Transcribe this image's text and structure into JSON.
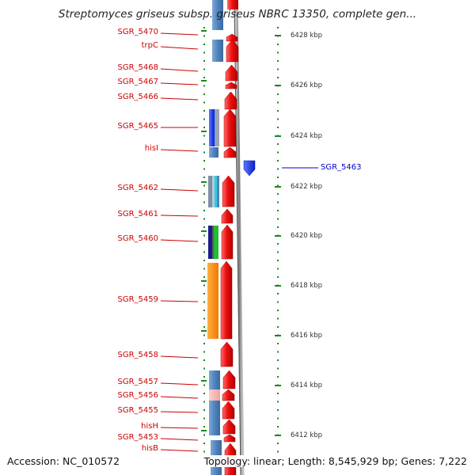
{
  "title": "Streptomyces griseus subsp. griseus NBRC 13350, complete gen...",
  "footer": {
    "accession": "Accession: NC_010572",
    "summary": "Topology: linear; Length: 8,545,929 bp; Genes: 7,222"
  },
  "colors": {
    "label_left": "#cc0000",
    "label_right": "#0000cc",
    "forward_gene": "#ee1111",
    "reverse_gene": "#1a3cff",
    "tick": "#1a8a1a",
    "backbone": "#7f7f7f"
  },
  "scale_labels": [
    "6428 kbp",
    "6426 kbp",
    "6424 kbp",
    "6422 kbp",
    "6420 kbp",
    "6418 kbp",
    "6416 kbp",
    "6414 kbp",
    "6412 kbp"
  ],
  "left_genes": [
    {
      "label": "SGR_5470"
    },
    {
      "label": "trpC"
    },
    {
      "label": "SGR_5468"
    },
    {
      "label": "SGR_5467"
    },
    {
      "label": "SGR_5466"
    },
    {
      "label": "SGR_5465"
    },
    {
      "label": "hisI"
    },
    {
      "label": "SGR_5462"
    },
    {
      "label": "SGR_5461"
    },
    {
      "label": "SGR_5460"
    },
    {
      "label": "SGR_5459"
    },
    {
      "label": "SGR_5458"
    },
    {
      "label": "SGR_5457"
    },
    {
      "label": "SGR_5456"
    },
    {
      "label": "SGR_5455"
    },
    {
      "label": "hisH"
    },
    {
      "label": "SGR_5453"
    },
    {
      "label": "hisB"
    }
  ],
  "right_genes": [
    {
      "label": "SGR_5463"
    }
  ]
}
